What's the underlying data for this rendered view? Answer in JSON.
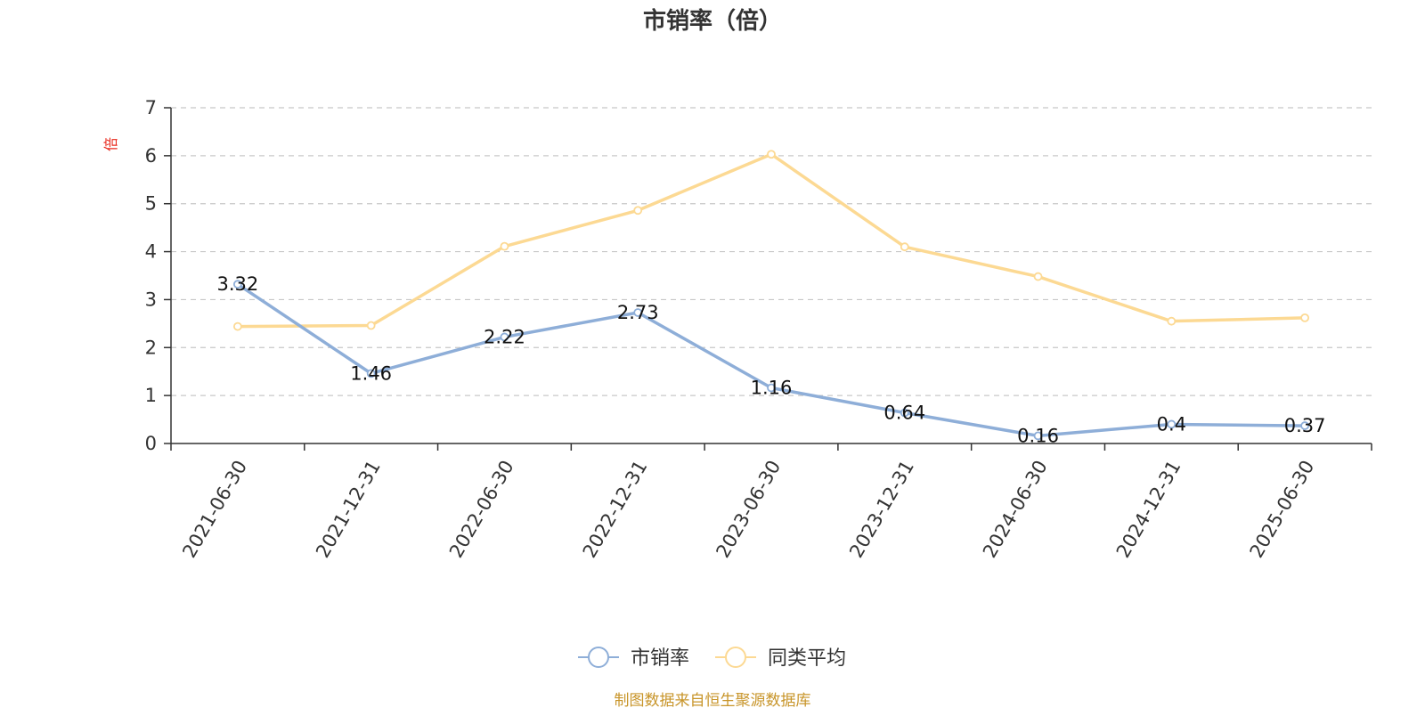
{
  "chart_data": {
    "type": "line",
    "title": "市销率（倍）",
    "ylabel": "倍",
    "xlabel": "",
    "categories": [
      "2021-06-30",
      "2021-12-31",
      "2022-06-30",
      "2022-12-31",
      "2023-06-30",
      "2023-12-31",
      "2024-06-30",
      "2024-12-31",
      "2025-06-30"
    ],
    "ylim": [
      0,
      7
    ],
    "yticks": [
      "0",
      "1",
      "2",
      "3",
      "4",
      "5",
      "6",
      "7"
    ],
    "grid": true,
    "legend_position": "bottom-center",
    "series": [
      {
        "name": "市销率",
        "color": "#8eaed8",
        "values": [
          3.32,
          1.46,
          2.22,
          2.73,
          1.16,
          0.64,
          0.16,
          0.4,
          0.37
        ],
        "labels": [
          "3.32",
          "1.46",
          "2.22",
          "2.73",
          "1.16",
          "0.64",
          "0.16",
          "0.4",
          "0.37"
        ]
      },
      {
        "name": "同类平均",
        "color": "#fcd993",
        "values": [
          2.44,
          2.46,
          4.11,
          4.86,
          6.03,
          4.1,
          3.48,
          2.55,
          2.62
        ]
      }
    ],
    "unit_color": "#e8281c",
    "source": "制图数据来自恒生聚源数据库",
    "source_color": "#c8952a"
  }
}
